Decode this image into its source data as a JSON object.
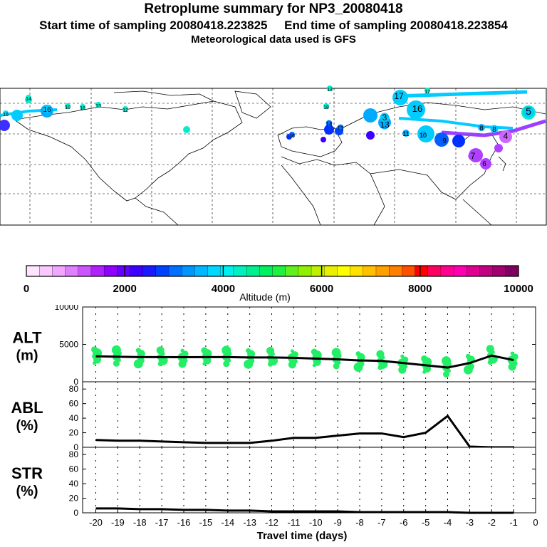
{
  "header": {
    "title": "Retroplume summary for NP3_20080418",
    "line2": "Start time of sampling 20080418.223825     End time of sampling 20080418.223854",
    "line3": "Meteorological data used is GFS"
  },
  "colorbar": {
    "ticks": [
      "0",
      "2000",
      "4000",
      "6000",
      "8000",
      "10000"
    ],
    "label": "Altitude (m)",
    "colors": [
      "#ffe4ff",
      "#f9c8ff",
      "#f0a8ff",
      "#e080ff",
      "#cc55ff",
      "#b020ff",
      "#9000ff",
      "#6600ff",
      "#3b00ff",
      "#1a1aff",
      "#0040ff",
      "#0070ff",
      "#0095ff",
      "#00b8ff",
      "#00d8ff",
      "#00f0f0",
      "#00f0c0",
      "#00f090",
      "#00f060",
      "#20f040",
      "#60f020",
      "#90f000",
      "#c0f000",
      "#e8f000",
      "#ffff00",
      "#ffe000",
      "#ffc000",
      "#ffa000",
      "#ff8000",
      "#ff5000",
      "#ff0000",
      "#ff0060",
      "#ff0090",
      "#ff00b0",
      "#e00090",
      "#c00080",
      "#a00070",
      "#800060"
    ]
  },
  "chart_data": [
    {
      "type": "line",
      "panel": "ALT",
      "ylabel": "ALT (m)",
      "ylim": [
        0,
        10000
      ],
      "yticks": [
        "0",
        "5000",
        "10000"
      ],
      "x": [
        -20,
        -19,
        -18,
        -17,
        -16,
        -15,
        -14,
        -13,
        -12,
        -11,
        -10,
        -9,
        -8,
        -7,
        -6,
        -5,
        -4,
        -3,
        -2,
        -1
      ],
      "values": [
        3400,
        3350,
        3300,
        3300,
        3280,
        3300,
        3300,
        3250,
        3250,
        3200,
        3100,
        3000,
        2850,
        2800,
        2500,
        2200,
        1900,
        2500,
        3500,
        2900
      ],
      "scatter_color": "#22ee66"
    },
    {
      "type": "line",
      "panel": "ABL",
      "ylabel": "ABL (%)",
      "ylim": [
        0,
        90
      ],
      "yticks": [
        "0",
        "20",
        "40",
        "60",
        "80"
      ],
      "x": [
        -20,
        -19,
        -18,
        -17,
        -16,
        -15,
        -14,
        -13,
        -12,
        -11,
        -10,
        -9,
        -8,
        -7,
        -6,
        -5,
        -4,
        -3,
        -2,
        -1
      ],
      "values": [
        10,
        9,
        9,
        8,
        7,
        6,
        6,
        6,
        9,
        13,
        13,
        16,
        19,
        19,
        14,
        20,
        43,
        1,
        0,
        0
      ]
    },
    {
      "type": "line",
      "panel": "STR",
      "ylabel": "STR (%)",
      "ylim": [
        0,
        90
      ],
      "yticks": [
        "0",
        "20",
        "40",
        "60",
        "80"
      ],
      "x": [
        -20,
        -19,
        -18,
        -17,
        -16,
        -15,
        -14,
        -13,
        -12,
        -11,
        -10,
        -9,
        -8,
        -7,
        -6,
        -5,
        -4,
        -3,
        -2,
        -1
      ],
      "values": [
        6,
        6,
        5,
        5,
        4,
        4,
        3,
        3,
        2,
        2,
        2,
        2,
        1,
        1,
        1,
        1,
        1,
        0,
        0,
        0
      ],
      "xlabel": "Travel time (days)",
      "xticks": [
        "-20",
        "-19",
        "-18",
        "-17",
        "-16",
        "-15",
        "-14",
        "-13",
        "-12",
        "-11",
        "-10",
        "-9",
        "-8",
        "-7",
        "-6",
        "-5",
        "-4",
        "-3",
        "-2",
        "-1",
        "0"
      ]
    }
  ],
  "map": {
    "labels": [
      {
        "t": "13",
        "c": "#00eecc"
      },
      {
        "t": "14",
        "c": "#00eecc"
      },
      {
        "t": "16",
        "c": "#00e0ff"
      },
      {
        "t": "16",
        "c": "#00ccff"
      },
      {
        "t": "10",
        "c": "#00eecc"
      },
      {
        "t": "16",
        "c": "#00eecc"
      },
      {
        "t": "13",
        "c": "#00eecc"
      },
      {
        "t": "12",
        "c": "#00eecc"
      },
      {
        "t": "18",
        "c": "#00eecc"
      },
      {
        "t": "17",
        "c": "#00eecc"
      },
      {
        "t": "14",
        "c": "#0070ff"
      },
      {
        "t": "13",
        "c": "#0070ff"
      },
      {
        "t": "17",
        "c": "#00ccff"
      },
      {
        "t": "16",
        "c": "#00ccff"
      },
      {
        "t": "13",
        "c": "#00aaff"
      },
      {
        "t": "11",
        "c": "#00aaff"
      },
      {
        "t": "10",
        "c": "#00aaff"
      },
      {
        "t": "9",
        "c": "#0060ff"
      },
      {
        "t": "8",
        "c": "#00aaff"
      },
      {
        "t": "7",
        "c": "#b040ff"
      },
      {
        "t": "6",
        "c": "#b040ff"
      },
      {
        "t": "5",
        "c": "#00ccff"
      },
      {
        "t": "4",
        "c": "#cc66ff"
      },
      {
        "t": "3",
        "c": "#00ccff"
      },
      {
        "t": "8",
        "c": "#00ccff"
      },
      {
        "t": "16",
        "c": "#0060ff"
      }
    ]
  }
}
